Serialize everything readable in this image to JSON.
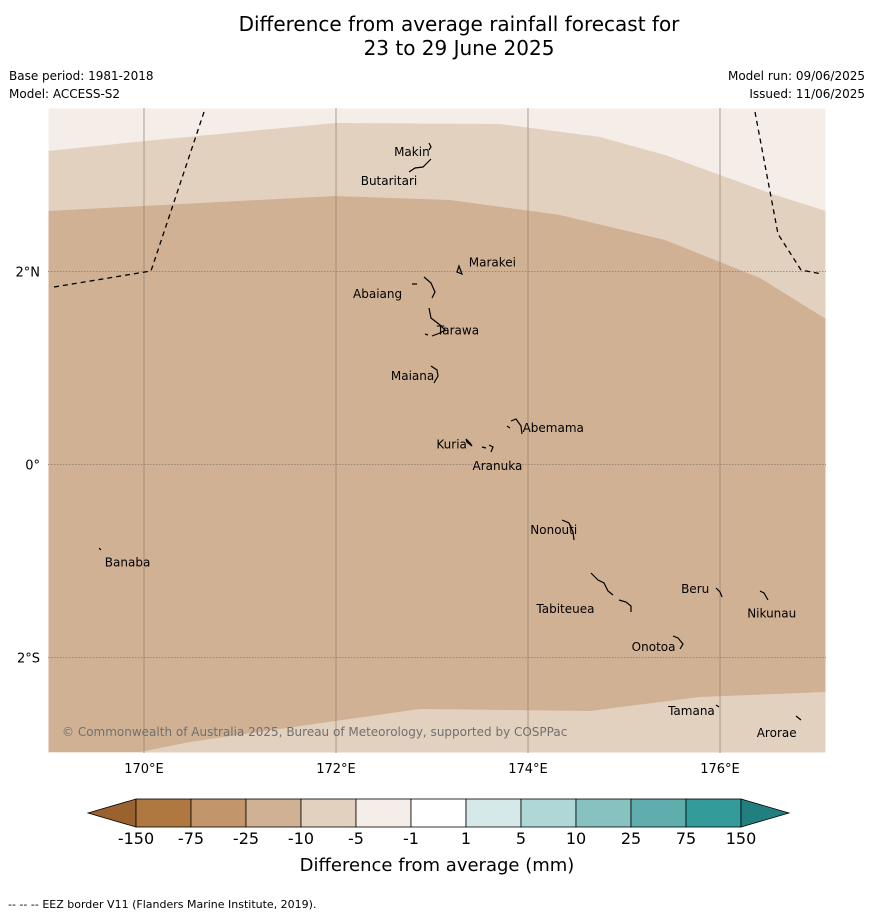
{
  "title_line1": "Difference from average rainfall forecast for",
  "title_line2": "23 to 29 June 2025",
  "meta_left": {
    "base_period": "Base period: 1981-2018",
    "model": "Model: ACCESS-S2"
  },
  "meta_right": {
    "model_run": "Model run: 09/06/2025",
    "issued": "Issued: 11/06/2025"
  },
  "map": {
    "lon_range": [
      169,
      177.1
    ],
    "lat_range": [
      -3.0,
      3.7
    ],
    "lon_ticks": [
      {
        "value": 170,
        "label": "170°E"
      },
      {
        "value": 172,
        "label": "172°E"
      },
      {
        "value": 174,
        "label": "174°E"
      },
      {
        "value": 176,
        "label": "176°E"
      }
    ],
    "lat_ticks": [
      {
        "value": 2,
        "label": "2°N"
      },
      {
        "value": 0,
        "label": "0°"
      },
      {
        "value": -2,
        "label": "2°S"
      }
    ],
    "copyright": "© Commonwealth of Australia 2025, Bureau of Meteorology, supported by COSPPac",
    "islands": [
      {
        "name": "Makin",
        "lon": 172.98,
        "lat": 3.27
      },
      {
        "name": "Butaritari",
        "lon": 172.82,
        "lat": 3.03
      },
      {
        "name": "Marakei",
        "lon": 173.31,
        "lat": 2.02
      },
      {
        "name": "Abaiang",
        "lon": 172.99,
        "lat": 1.8
      },
      {
        "name": "Tarawa",
        "lon": 173.02,
        "lat": 1.4
      },
      {
        "name": "Maiana",
        "lon": 173.03,
        "lat": 0.93
      },
      {
        "name": "Abemama",
        "lon": 173.85,
        "lat": 0.4
      },
      {
        "name": "Kuria",
        "lon": 173.4,
        "lat": 0.22
      },
      {
        "name": "Aranuka",
        "lon": 173.62,
        "lat": 0.17
      },
      {
        "name": "Nonouti",
        "lon": 174.43,
        "lat": -0.65
      },
      {
        "name": "Banaba",
        "lon": 169.55,
        "lat": -0.87
      },
      {
        "name": "Tabiteuea",
        "lon": 174.9,
        "lat": -1.35
      },
      {
        "name": "Beru",
        "lon": 175.98,
        "lat": -1.32
      },
      {
        "name": "Nikunau",
        "lon": 176.45,
        "lat": -1.37
      },
      {
        "name": "Onotoa",
        "lon": 175.58,
        "lat": -1.87
      },
      {
        "name": "Tamana",
        "lon": 175.98,
        "lat": -2.5
      },
      {
        "name": "Arorae",
        "lon": 176.82,
        "lat": -2.65
      }
    ]
  },
  "legend": {
    "title": "Difference from average (mm)",
    "colors": [
      "#ae7840",
      "#c2956a",
      "#d1b193",
      "#e3d1c0",
      "#f5ede7",
      "#ffffff",
      "#d5e9e9",
      "#afd7d7",
      "#87c2c1",
      "#5fadad",
      "#349b9b"
    ],
    "low_extend_color": "#9a622e",
    "high_extend_color": "#21807f",
    "tick_labels": [
      "-150",
      "-75",
      "-25",
      "-10",
      "-5",
      "-1",
      "1",
      "5",
      "10",
      "25",
      "75",
      "150"
    ]
  },
  "footer": {
    "dash": "--  --  --",
    "text": "EEZ border V11 (Flanders Marine Institute, 2019)."
  }
}
